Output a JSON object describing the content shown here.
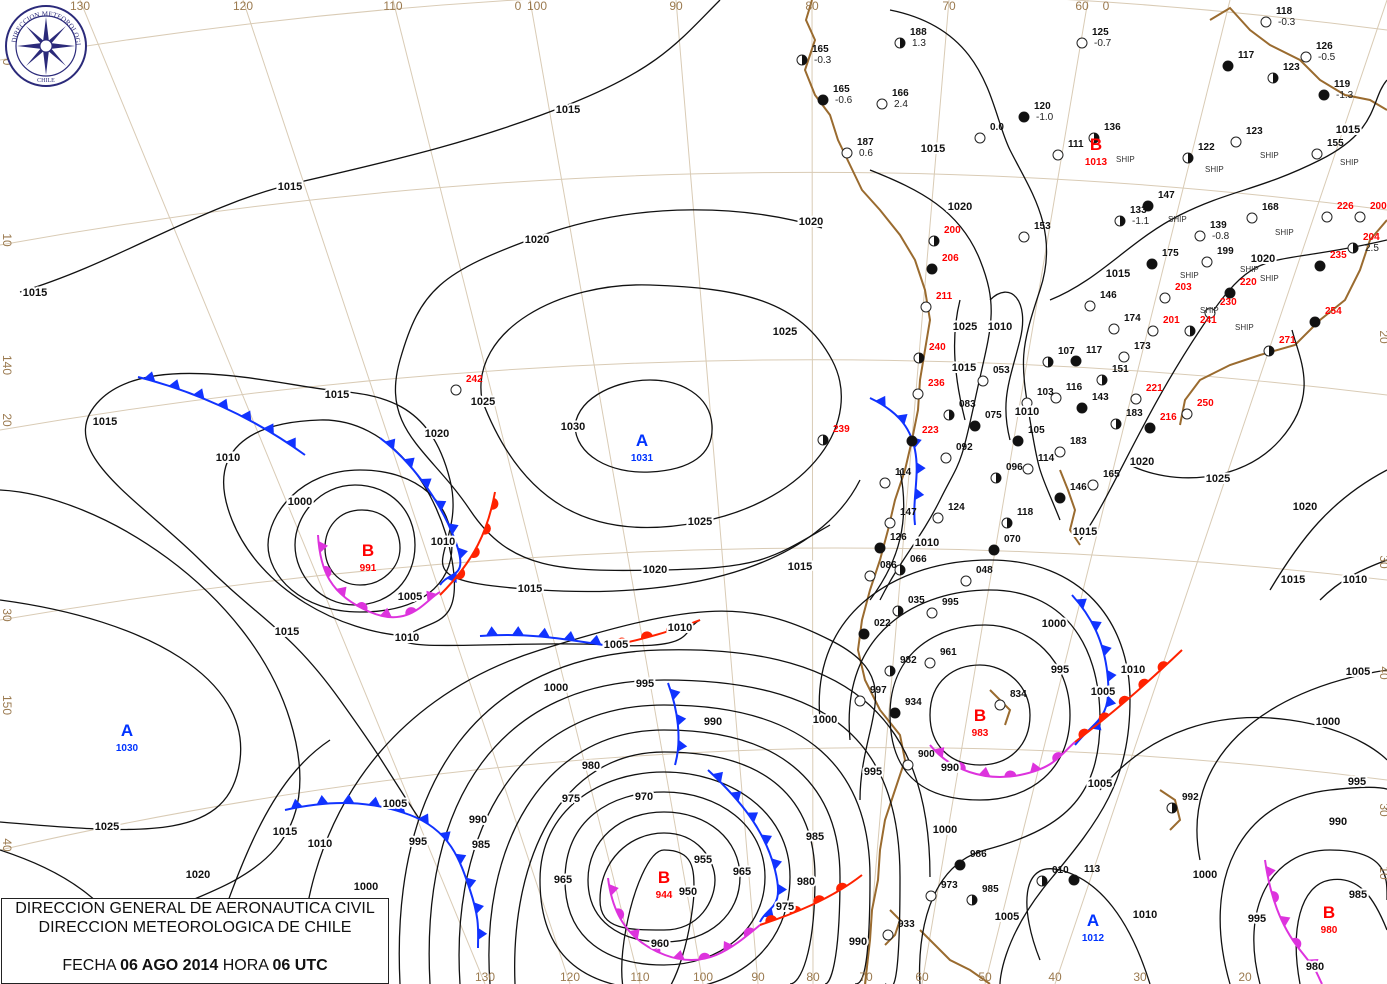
{
  "title_box": {
    "line1": "DIRECCION GENERAL DE AERONAUTICA CIVIL",
    "line2": "DIRECCION METEOROLOGICA DE CHILE",
    "fecha_label": "FECHA",
    "fecha_value": "06 AGO 2014",
    "hora_label": "HORA",
    "hora_value": "06 UTC"
  },
  "logo": {
    "text": "DIRECCION METEOROLOGICA CHILE",
    "icon": "compass-rose-seal"
  },
  "colors": {
    "high": "#0033ff",
    "low": "#ff0000",
    "cold_front": "#1133ff",
    "warm_front": "#ff2200",
    "occluded_front": "#dd33dd",
    "coastline": "#9a6b2f",
    "grid": "#d9cbb5",
    "isobar": "#111111"
  },
  "grid_labels": {
    "top": [
      "130",
      "120",
      "110",
      "0",
      "100",
      "90",
      "80",
      "70",
      "60",
      "0"
    ],
    "bottom": [
      "130",
      "120",
      "110",
      "100",
      "90",
      "80",
      "70",
      "60",
      "50",
      "40",
      "30",
      "20"
    ],
    "left": [
      "0",
      "10",
      "140",
      "20",
      "30",
      "150",
      "40"
    ],
    "right": [
      "20",
      "30",
      "40",
      "30",
      "10"
    ]
  },
  "pressure_centers": [
    {
      "type": "A",
      "value": "1031"
    },
    {
      "type": "B",
      "value": "991"
    },
    {
      "type": "A",
      "value": "1030"
    },
    {
      "type": "B",
      "value": "944"
    },
    {
      "type": "B",
      "value": "983"
    },
    {
      "type": "A",
      "value": "1012"
    },
    {
      "type": "B",
      "value": "980"
    },
    {
      "type": "B",
      "value": "1013"
    }
  ],
  "isobar_labels": [
    "1015",
    "1015",
    "1015",
    "1020",
    "1020",
    "1020",
    "1020",
    "1025",
    "1025",
    "1025",
    "1030",
    "1015",
    "1015",
    "1015",
    "1015",
    "1015",
    "1010",
    "1010",
    "1010",
    "1005",
    "1005",
    "1000",
    "1010",
    "1000",
    "995",
    "990",
    "980",
    "975",
    "970",
    "965",
    "965",
    "960",
    "955",
    "950",
    "975",
    "980",
    "985",
    "990",
    "985",
    "995",
    "1005",
    "1010",
    "1015",
    "1020",
    "1025",
    "1000",
    "1000",
    "995",
    "1005",
    "1010",
    "990",
    "1000",
    "995",
    "1005",
    "990",
    "1000",
    "1005",
    "1010",
    "1000",
    "995",
    "990",
    "995",
    "1000",
    "1005",
    "1010",
    "1015",
    "1020",
    "1025",
    "1020",
    "1015",
    "1015",
    "1020",
    "1015",
    "1010",
    "1025",
    "1015",
    "1010",
    "1020",
    "1015",
    "1010",
    "985",
    "980"
  ],
  "fronts": [
    {
      "type": "cold"
    },
    {
      "type": "cold"
    },
    {
      "type": "warm"
    },
    {
      "type": "occluded"
    },
    {
      "type": "cold"
    },
    {
      "type": "warm"
    },
    {
      "type": "cold"
    },
    {
      "type": "cold"
    },
    {
      "type": "cold"
    },
    {
      "type": "occluded"
    },
    {
      "type": "warm"
    },
    {
      "type": "cold"
    },
    {
      "type": "cold"
    },
    {
      "type": "occluded"
    },
    {
      "type": "warm"
    },
    {
      "type": "occluded"
    }
  ],
  "stations": [
    {
      "id": "165",
      "c": "k",
      "t": "-0.3"
    },
    {
      "id": "165",
      "c": "k",
      "t": "-0.6"
    },
    {
      "id": "166",
      "c": "k",
      "t": "2.4"
    },
    {
      "id": "188",
      "c": "k",
      "t": "1.3"
    },
    {
      "id": "187",
      "c": "k",
      "t": "0.6"
    },
    {
      "id": "120",
      "c": "k",
      "t": "-1.0"
    },
    {
      "id": "136",
      "c": "k",
      "t": ""
    },
    {
      "id": "111",
      "c": "k",
      "t": ""
    },
    {
      "id": "125",
      "c": "k",
      "t": "-0.7"
    },
    {
      "id": "117",
      "c": "k",
      "t": ""
    },
    {
      "id": "118",
      "c": "k",
      "t": "-0.3"
    },
    {
      "id": "126",
      "c": "k",
      "t": "-0.5"
    },
    {
      "id": "123",
      "c": "k",
      "t": ""
    },
    {
      "id": "119",
      "c": "k",
      "t": "-1.3"
    },
    {
      "id": "123",
      "c": "k",
      "t": ""
    },
    {
      "id": "122",
      "c": "k",
      "t": ""
    },
    {
      "id": "155",
      "c": "k",
      "t": ""
    },
    {
      "id": "147",
      "c": "k",
      "t": ""
    },
    {
      "id": "133",
      "c": "k",
      "t": "-1.1"
    },
    {
      "id": "168",
      "c": "k",
      "t": ""
    },
    {
      "id": "139",
      "c": "k",
      "t": "-0.8"
    },
    {
      "id": "175",
      "c": "k",
      "t": ""
    },
    {
      "id": "199",
      "c": "k",
      "t": ""
    },
    {
      "id": "153",
      "c": "k",
      "t": ""
    },
    {
      "id": "200",
      "c": "r",
      "t": ""
    },
    {
      "id": "206",
      "c": "r",
      "t": ""
    },
    {
      "id": "211",
      "c": "r",
      "t": ""
    },
    {
      "id": "240",
      "c": "r",
      "t": ""
    },
    {
      "id": "236",
      "c": "r",
      "t": ""
    },
    {
      "id": "223",
      "c": "r",
      "t": ""
    },
    {
      "id": "239",
      "c": "r",
      "t": ""
    },
    {
      "id": "242",
      "c": "r",
      "t": ""
    },
    {
      "id": "203",
      "c": "r",
      "t": ""
    },
    {
      "id": "220",
      "c": "r",
      "t": ""
    },
    {
      "id": "226",
      "c": "r",
      "t": ""
    },
    {
      "id": "200",
      "c": "r",
      "t": ""
    },
    {
      "id": "204",
      "c": "r",
      "t": "2.5"
    },
    {
      "id": "235",
      "c": "r",
      "t": ""
    },
    {
      "id": "230",
      "c": "r",
      "t": ""
    },
    {
      "id": "241",
      "c": "r",
      "t": ""
    },
    {
      "id": "201",
      "c": "r",
      "t": ""
    },
    {
      "id": "254",
      "c": "r",
      "t": ""
    },
    {
      "id": "271",
      "c": "r",
      "t": ""
    },
    {
      "id": "221",
      "c": "r",
      "t": ""
    },
    {
      "id": "250",
      "c": "r",
      "t": ""
    },
    {
      "id": "216",
      "c": "r",
      "t": ""
    },
    {
      "id": "146",
      "c": "k",
      "t": ""
    },
    {
      "id": "174",
      "c": "k",
      "t": ""
    },
    {
      "id": "107",
      "c": "k",
      "t": ""
    },
    {
      "id": "117",
      "c": "k",
      "t": ""
    },
    {
      "id": "173",
      "c": "k",
      "t": ""
    },
    {
      "id": "151",
      "c": "k",
      "t": ""
    },
    {
      "id": "116",
      "c": "k",
      "t": ""
    },
    {
      "id": "143",
      "c": "k",
      "t": ""
    },
    {
      "id": "183",
      "c": "k",
      "t": ""
    },
    {
      "id": "183",
      "c": "k",
      "t": ""
    },
    {
      "id": "114",
      "c": "k",
      "t": ""
    },
    {
      "id": "105",
      "c": "k",
      "t": ""
    },
    {
      "id": "053",
      "c": "k",
      "t": ""
    },
    {
      "id": "103",
      "c": "k",
      "t": ""
    },
    {
      "id": "083",
      "c": "k",
      "t": ""
    },
    {
      "id": "075",
      "c": "k",
      "t": ""
    },
    {
      "id": "092",
      "c": "k",
      "t": ""
    },
    {
      "id": "096",
      "c": "k",
      "t": ""
    },
    {
      "id": "165",
      "c": "k",
      "t": ""
    },
    {
      "id": "146",
      "c": "k",
      "t": ""
    },
    {
      "id": "118",
      "c": "k",
      "t": ""
    },
    {
      "id": "124",
      "c": "k",
      "t": ""
    },
    {
      "id": "147",
      "c": "k",
      "t": ""
    },
    {
      "id": "126",
      "c": "k",
      "t": ""
    },
    {
      "id": "114",
      "c": "k",
      "t": ""
    },
    {
      "id": "086",
      "c": "k",
      "t": ""
    },
    {
      "id": "066",
      "c": "k",
      "t": ""
    },
    {
      "id": "070",
      "c": "k",
      "t": ""
    },
    {
      "id": "048",
      "c": "k",
      "t": ""
    },
    {
      "id": "035",
      "c": "k",
      "t": ""
    },
    {
      "id": "995",
      "c": "k",
      "t": ""
    },
    {
      "id": "022",
      "c": "k",
      "t": ""
    },
    {
      "id": "982",
      "c": "k",
      "t": ""
    },
    {
      "id": "961",
      "c": "k",
      "t": ""
    },
    {
      "id": "997",
      "c": "k",
      "t": ""
    },
    {
      "id": "934",
      "c": "k",
      "t": ""
    },
    {
      "id": "834",
      "c": "k",
      "t": ""
    },
    {
      "id": "900",
      "c": "k",
      "t": ""
    },
    {
      "id": "992",
      "c": "k",
      "t": ""
    },
    {
      "id": "986",
      "c": "k",
      "t": ""
    },
    {
      "id": "973",
      "c": "k",
      "t": ""
    },
    {
      "id": "985",
      "c": "k",
      "t": ""
    },
    {
      "id": "933",
      "c": "k",
      "t": ""
    },
    {
      "id": "113",
      "c": "k",
      "t": ""
    },
    {
      "id": "010",
      "c": "k",
      "t": ""
    },
    {
      "id": "0.0",
      "c": "k",
      "t": ""
    }
  ],
  "ship_label": "SHIP"
}
